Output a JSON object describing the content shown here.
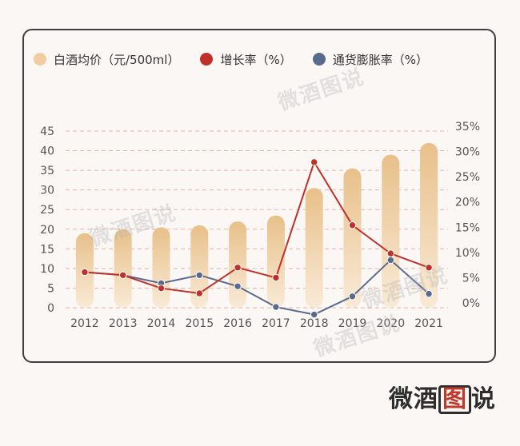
{
  "legend": [
    {
      "label": "白酒均价（元/500ml）",
      "color": "#f0cda0"
    },
    {
      "label": "增长率（%）",
      "color": "#c0302a"
    },
    {
      "label": "通货膨胀率（%）",
      "color": "#5a6a8c"
    }
  ],
  "watermark": "微酒图说",
  "brand": {
    "part1": "微酒",
    "part2": "图",
    "part3": "说"
  },
  "chart_data": {
    "type": "bar+line",
    "categories": [
      "2012",
      "2013",
      "2014",
      "2015",
      "2016",
      "2017",
      "2018",
      "2019",
      "2020",
      "2021"
    ],
    "left_axis": {
      "ticks": [
        "0",
        "5",
        "10",
        "15",
        "20",
        "25",
        "30",
        "35",
        "40",
        "45"
      ],
      "ylim": [
        0,
        45
      ]
    },
    "right_axis": {
      "ticks": [
        "0%",
        "5%",
        "10%",
        "15%",
        "20%",
        "25%",
        "30%",
        "35%"
      ],
      "ylim": [
        0,
        35
      ]
    },
    "grid": true,
    "series": [
      {
        "name": "白酒均价（元/500ml）",
        "type": "bar",
        "axis": "left",
        "values": [
          19,
          20,
          20.5,
          21,
          22,
          23.5,
          30.5,
          35.5,
          39,
          42
        ]
      },
      {
        "name": "增长率（%）",
        "type": "line",
        "axis": "right",
        "values": [
          6.1,
          5.5,
          2.9,
          1.9,
          7,
          5,
          27.9,
          15.4,
          9.8,
          7
        ]
      },
      {
        "name": "通货膨胀率（%）",
        "type": "line",
        "axis": "right",
        "values": [
          6.1,
          5.5,
          3.9,
          5.5,
          3.3,
          -0.8,
          -2.3,
          1.3,
          8.5,
          1.8
        ]
      }
    ]
  }
}
